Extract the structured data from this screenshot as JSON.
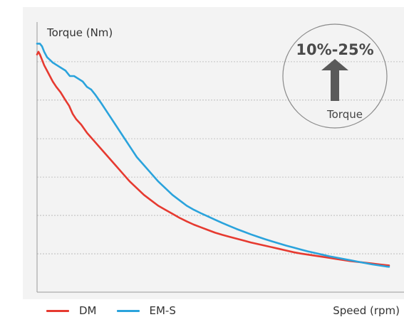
{
  "chart_data": {
    "type": "line",
    "ylabel": "Torque (Nm)",
    "xlabel": "Speed (rpm)",
    "grid": true,
    "legend_position": "bottom-left",
    "series": [
      {
        "name": "DM",
        "color": "#e63a30",
        "x": [
          0,
          2,
          4,
          7,
          10,
          14,
          18,
          22,
          27,
          33,
          40,
          45,
          50,
          55,
          62,
          70,
          80,
          90,
          100,
          110,
          120,
          130,
          140,
          150,
          160,
          170,
          180,
          190,
          200,
          210,
          220,
          230,
          240,
          250,
          260,
          270,
          280,
          290,
          300,
          310,
          320,
          330,
          340,
          350,
          360,
          370,
          380,
          390,
          400,
          410,
          420,
          430,
          440,
          450,
          460,
          470,
          480,
          490,
          494
        ],
        "y": [
          88,
          89,
          88,
          86,
          84,
          82,
          80,
          78,
          76,
          74,
          71,
          69,
          66,
          64,
          62,
          59,
          56,
          53,
          50,
          47,
          44,
          41,
          38.5,
          36,
          34,
          32,
          30.5,
          29,
          27.5,
          26.2,
          25,
          24,
          23,
          22,
          21.2,
          20.5,
          19.8,
          19.1,
          18.4,
          17.8,
          17.2,
          16.6,
          16,
          15.4,
          14.8,
          14.3,
          13.9,
          13.5,
          13.1,
          12.7,
          12.3,
          11.9,
          11.5,
          11.2,
          10.9,
          10.6,
          10.3,
          10,
          9.9
        ]
      },
      {
        "name": "EM-S",
        "color": "#2aa3dc",
        "x": [
          0,
          4,
          7,
          10,
          14,
          18,
          22,
          28,
          34,
          40,
          46,
          52,
          58,
          64,
          70,
          76,
          82,
          90,
          100,
          110,
          120,
          130,
          140,
          150,
          160,
          170,
          180,
          190,
          200,
          210,
          220,
          230,
          240,
          250,
          260,
          270,
          280,
          290,
          300,
          310,
          320,
          330,
          340,
          350,
          360,
          370,
          380,
          390,
          400,
          410,
          420,
          430,
          440,
          450,
          460,
          470,
          480,
          490,
          494
        ],
        "y": [
          92,
          92,
          91,
          89,
          87,
          86,
          85,
          84,
          83,
          82,
          80,
          80,
          79,
          78,
          76,
          75,
          73,
          70,
          66,
          62,
          58,
          54,
          50,
          47,
          44,
          41,
          38.5,
          36,
          34,
          32,
          30.5,
          29.2,
          28,
          26.8,
          25.6,
          24.5,
          23.4,
          22.4,
          21.4,
          20.5,
          19.6,
          18.8,
          18,
          17.2,
          16.5,
          15.8,
          15.1,
          14.5,
          13.9,
          13.3,
          12.8,
          12.3,
          11.8,
          11.3,
          10.8,
          10.3,
          9.9,
          9.5,
          9.4
        ]
      }
    ],
    "xlim": [
      0,
      494
    ],
    "ylim": [
      0,
      100
    ],
    "annotation": {
      "value": "10%-25%",
      "label": "Torque",
      "icon": "up-arrow-icon",
      "arrow_color": "#5a5a5a",
      "circle_color": "#8a8a8a"
    }
  }
}
